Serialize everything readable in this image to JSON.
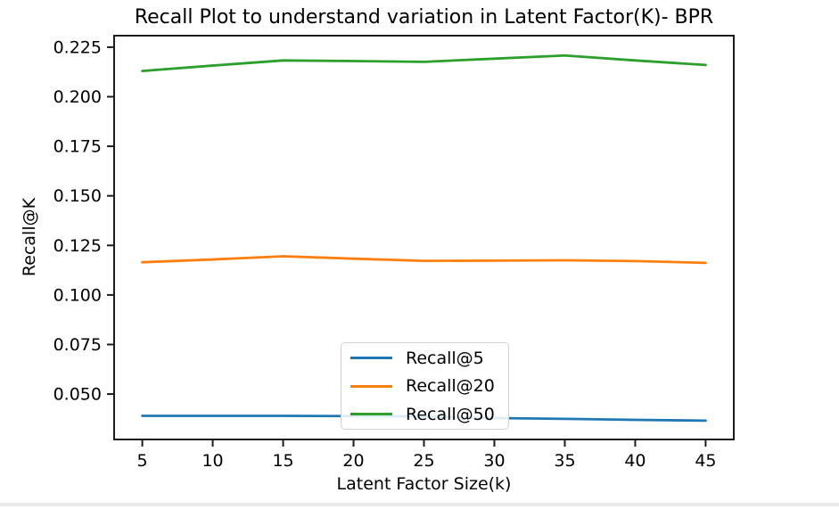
{
  "window": {
    "background": "#ffffff"
  },
  "chart_data": {
    "type": "line",
    "title": "Recall Plot to understand variation in Latent Factor(K)- BPR",
    "xlabel": "Latent Factor Size(k)",
    "ylabel": "Recall@K",
    "x": [
      5,
      10,
      15,
      20,
      25,
      30,
      35,
      40,
      45
    ],
    "xtick_labels": [
      "5",
      "10",
      "15",
      "20",
      "25",
      "30",
      "35",
      "40",
      "45"
    ],
    "ytick_values": [
      0.05,
      0.075,
      0.1,
      0.125,
      0.15,
      0.175,
      0.2,
      0.225
    ],
    "ytick_labels": [
      "0.050",
      "0.075",
      "0.100",
      "0.125",
      "0.150",
      "0.175",
      "0.200",
      "0.225"
    ],
    "xlim": [
      3,
      47
    ],
    "ylim": [
      0.0271,
      0.2308
    ],
    "grid": false,
    "legend_position": "inside lower-center",
    "series": [
      {
        "name": "Recall@5",
        "color": "#1f77b4",
        "values": [
          0.039,
          0.039,
          0.039,
          0.0389,
          0.0387,
          0.0379,
          0.0375,
          0.037,
          0.0366
        ]
      },
      {
        "name": "Recall@20",
        "color": "#ff7f0e",
        "values": [
          0.1165,
          0.1179,
          0.1195,
          0.1183,
          0.1172,
          0.1173,
          0.1175,
          0.1171,
          0.1162
        ]
      },
      {
        "name": "Recall@50",
        "color": "#2ca02c",
        "values": [
          0.213,
          0.2157,
          0.2183,
          0.218,
          0.2176,
          0.2192,
          0.2208,
          0.2183,
          0.216
        ]
      }
    ]
  },
  "colors": {
    "spine": "#1c1c1c",
    "tick": "#1c1c1c",
    "legend_border": "#d2d2d2",
    "bottom_divider": "#e9e9e9"
  }
}
